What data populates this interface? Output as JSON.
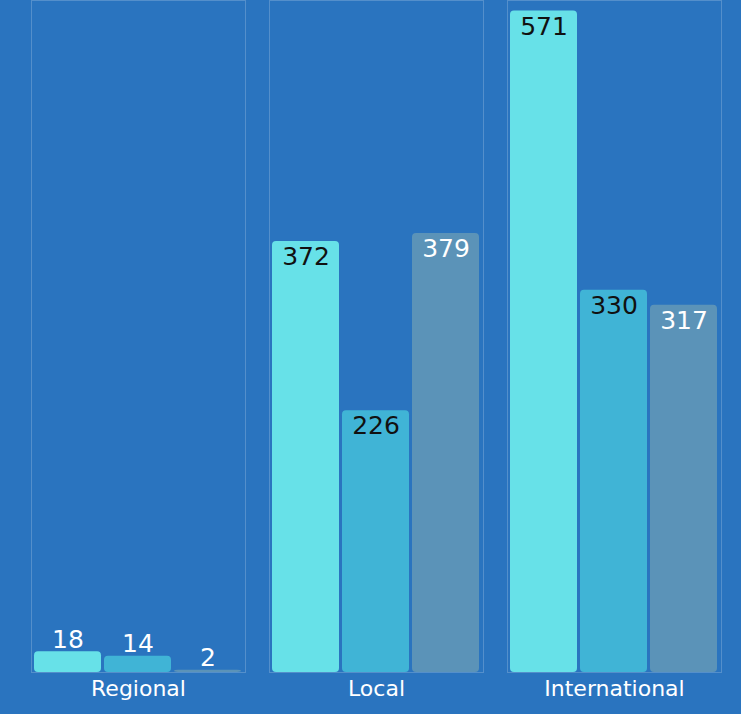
{
  "chart_data": {
    "type": "bar",
    "categories": [
      "Regional",
      "Local",
      "International"
    ],
    "series": [
      {
        "color": "#67e1e8",
        "values": [
          18,
          372,
          571
        ]
      },
      {
        "color": "#40b4d6",
        "values": [
          14,
          226,
          330
        ]
      },
      {
        "color": "#5b93b8",
        "values": [
          2,
          379,
          317
        ]
      }
    ],
    "ylim": [
      0,
      580
    ],
    "tick_labels": "x",
    "data_labels": true
  }
}
